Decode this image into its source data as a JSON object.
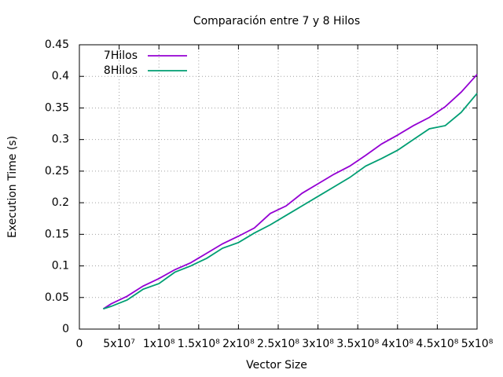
{
  "chart_data": {
    "type": "line",
    "title": "Comparación entre 7 y 8 Hilos",
    "x_label": "Vector Size",
    "y_label": "Execution Time (s)",
    "x": [
      30000000,
      40000000,
      60000000,
      80000000,
      100000000,
      120000000,
      140000000,
      160000000,
      180000000,
      200000000,
      220000000,
      240000000,
      260000000,
      280000000,
      300000000,
      320000000,
      340000000,
      360000000,
      380000000,
      400000000,
      420000000,
      440000000,
      460000000,
      480000000,
      500000000
    ],
    "series": [
      {
        "name": "7Hilos",
        "color": "#9400d3",
        "values": [
          0.032,
          0.04,
          0.052,
          0.068,
          0.08,
          0.094,
          0.105,
          0.12,
          0.135,
          0.147,
          0.16,
          0.183,
          0.195,
          0.215,
          0.23,
          0.245,
          0.258,
          0.275,
          0.293,
          0.307,
          0.322,
          0.335,
          0.352,
          0.375,
          0.403
        ]
      },
      {
        "name": "8Hilos",
        "color": "#009e73",
        "values": [
          0.032,
          0.036,
          0.046,
          0.063,
          0.072,
          0.09,
          0.1,
          0.112,
          0.128,
          0.137,
          0.152,
          0.165,
          0.18,
          0.195,
          0.21,
          0.225,
          0.24,
          0.258,
          0.27,
          0.283,
          0.3,
          0.317,
          0.322,
          0.343,
          0.373
        ]
      }
    ],
    "xlim": [
      0,
      500000000
    ],
    "xticks": [
      0,
      {
        "value": 50000000,
        "label": "5x10⁷"
      },
      {
        "value": 100000000,
        "label": "1x10⁸"
      },
      {
        "value": 150000000,
        "label": "1.5x10⁸"
      },
      {
        "value": 200000000,
        "label": "2x10⁸"
      },
      {
        "value": 250000000,
        "label": "2.5x10⁸"
      },
      {
        "value": 300000000,
        "label": "3x10⁸"
      },
      {
        "value": 350000000,
        "label": "3.5x10⁸"
      },
      {
        "value": 400000000,
        "label": "4x10⁸"
      },
      {
        "value": 450000000,
        "label": "4.5x10⁸"
      },
      {
        "value": 500000000,
        "label": "5x10⁸"
      }
    ],
    "ylim": [
      0,
      0.45
    ],
    "yticks": [
      0,
      0.05,
      0.1,
      0.15,
      0.2,
      0.25,
      0.3,
      0.35,
      0.4,
      0.45
    ],
    "grid": true,
    "legend": "top-left"
  }
}
